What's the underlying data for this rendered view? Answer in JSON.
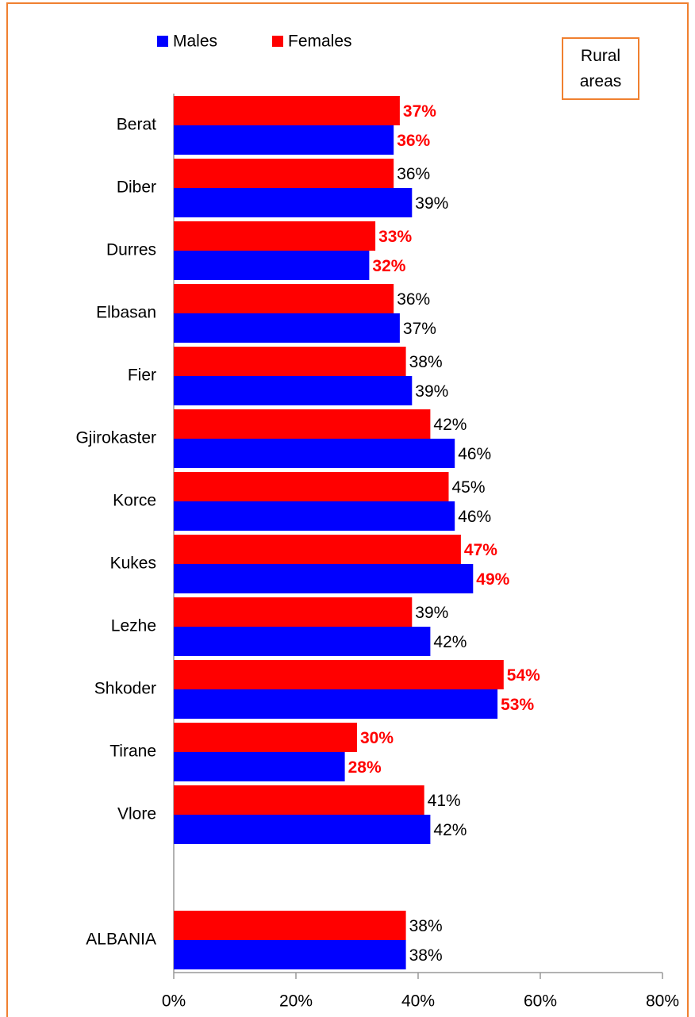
{
  "chart_data": {
    "type": "hbar",
    "annotation": "Rural areas",
    "categories": [
      "Berat",
      "Diber",
      "Durres",
      "Elbasan",
      "Fier",
      "Gjirokaster",
      "Korce",
      "Kukes",
      "Lezhe",
      "Shkoder",
      "Tirane",
      "Vlore",
      null,
      "ALBANIA"
    ],
    "series": [
      {
        "name": "Males",
        "color": "#0000ff",
        "values": [
          36,
          39,
          32,
          37,
          39,
          46,
          46,
          49,
          42,
          53,
          28,
          42,
          null,
          38
        ],
        "value_labels": [
          "36%",
          "39%",
          "32%",
          "37%",
          "39%",
          "46%",
          "46%",
          "49%",
          "42%",
          "53%",
          "28%",
          "42%",
          null,
          "38%"
        ],
        "value_label_colors": [
          "#ff0000",
          "#000000",
          "#ff0000",
          "#000000",
          "#000000",
          "#000000",
          "#000000",
          "#ff0000",
          "#000000",
          "#ff0000",
          "#ff0000",
          "#000000",
          null,
          "#000000"
        ]
      },
      {
        "name": "Females",
        "color": "#ff0000",
        "values": [
          37,
          36,
          33,
          36,
          38,
          42,
          45,
          47,
          39,
          54,
          30,
          41,
          null,
          38
        ],
        "value_labels": [
          "37%",
          "36%",
          "33%",
          "36%",
          "38%",
          "42%",
          "45%",
          "47%",
          "39%",
          "54%",
          "30%",
          "41%",
          null,
          "38%"
        ],
        "value_label_colors": [
          "#ff0000",
          "#000000",
          "#ff0000",
          "#000000",
          "#000000",
          "#000000",
          "#000000",
          "#ff0000",
          "#000000",
          "#ff0000",
          "#ff0000",
          "#000000",
          null,
          "#000000"
        ]
      }
    ],
    "xlim": [
      0,
      80
    ],
    "xticks": [
      {
        "value": 0,
        "label": "0%"
      },
      {
        "value": 20,
        "label": "20%"
      },
      {
        "value": 40,
        "label": "40%"
      },
      {
        "value": 60,
        "label": "60%"
      },
      {
        "value": 80,
        "label": "80%"
      }
    ],
    "grid": false,
    "legend": "top"
  }
}
